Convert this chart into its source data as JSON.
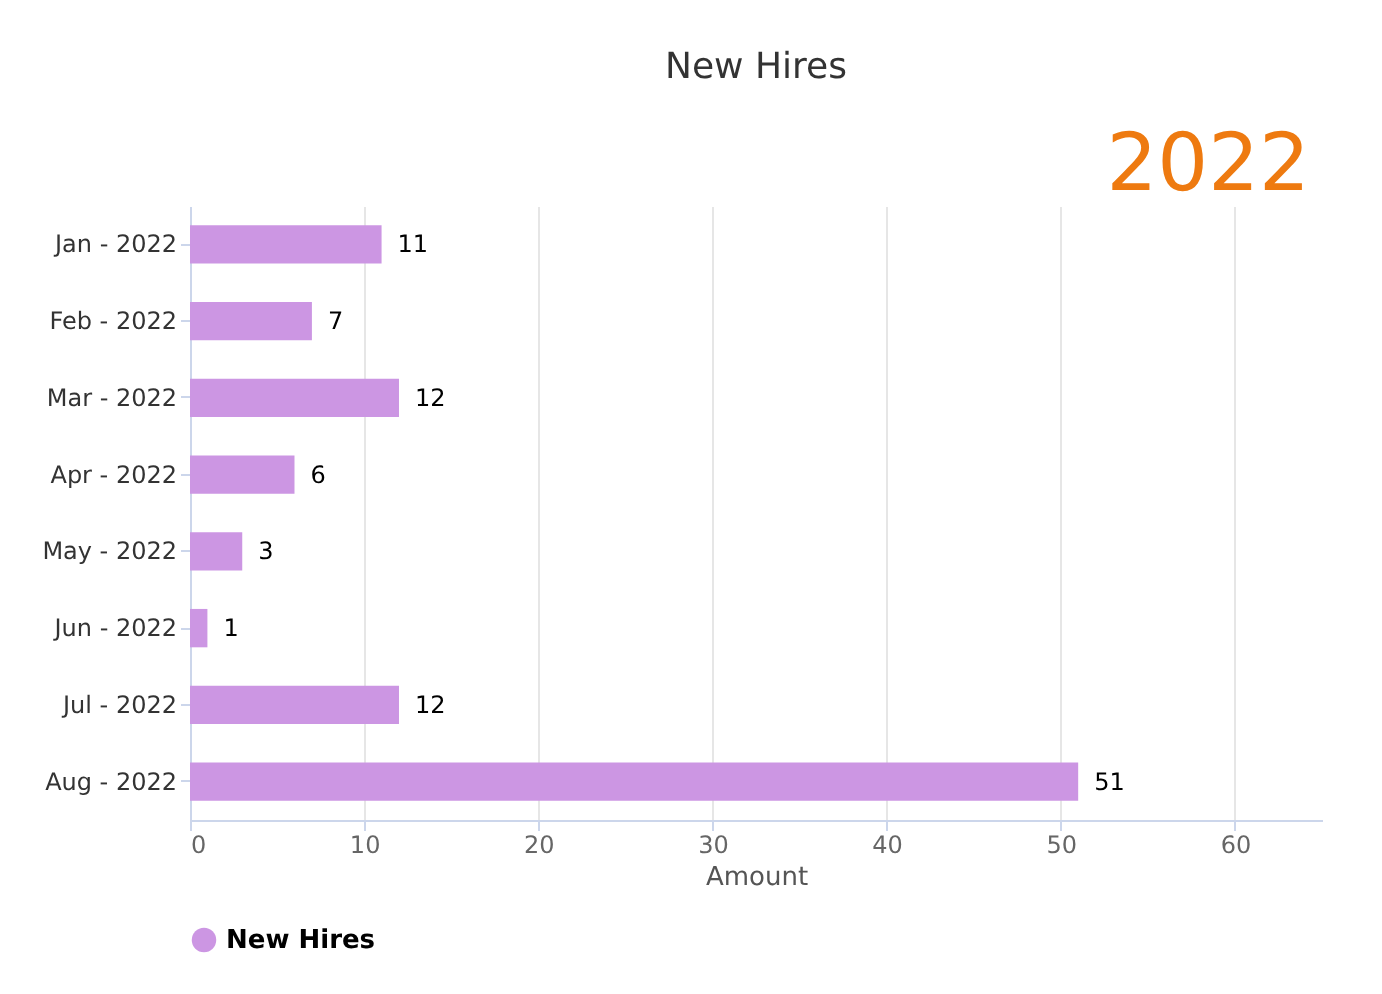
{
  "chart_data": {
    "type": "bar",
    "orientation": "horizontal",
    "title": "New Hires",
    "xlabel": "Amount",
    "categories": [
      "Jan - 2022",
      "Feb - 2022",
      "Mar - 2022",
      "Apr - 2022",
      "May - 2022",
      "Jun - 2022",
      "Jul - 2022",
      "Aug - 2022"
    ],
    "series": [
      {
        "name": "New Hires",
        "color": "#cc96e3",
        "values": [
          11,
          7,
          12,
          6,
          3,
          1,
          12,
          51
        ]
      }
    ],
    "xlim": [
      0,
      65
    ],
    "xticks": [
      0,
      10,
      20,
      30,
      40,
      50,
      60
    ],
    "grid": "x",
    "legend": "bottom",
    "data_labels": true,
    "annotations": [
      "2022"
    ]
  }
}
